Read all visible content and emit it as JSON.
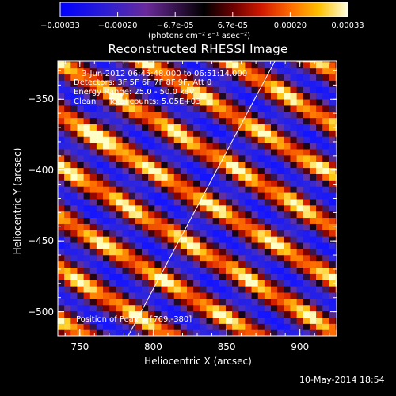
{
  "chart_data": {
    "type": "heatmap",
    "title": "Reconstructed RHESSI Image",
    "xlabel": "Heliocentric X (arcsec)",
    "ylabel": "Heliocentric Y (arcsec)",
    "xlim": [
      735,
      925
    ],
    "ylim": [
      -517,
      -323
    ],
    "xticks": [
      750,
      800,
      850,
      900
    ],
    "yticks": [
      -350,
      -400,
      -450,
      -500
    ],
    "colorbar": {
      "range": [
        -0.00033,
        0.00033
      ],
      "ticks": [
        "-0.00033",
        "-0.00020",
        "-6.7e-05",
        "6.7e-05",
        "0.00020",
        "0.00033"
      ],
      "unit_label": "(photons cm⁻² s⁻¹ asec⁻²)"
    },
    "annotations": {
      "time_range": "3-Jun-2012 06:45:48.000 to 06:51:14.000",
      "detectors": "Detectors: 3F 5F 6F 7F 8F 9F, Att 0",
      "energy_range": "Energy Range: 25.0 - 50.0 keV",
      "clean_counts": "Clean     Total counts: 5.05E+03",
      "peak_position": "Position of Peak = [769,-380]"
    },
    "peak": [
      769,
      -380
    ],
    "limb_line": {
      "x": [
        783,
        883
      ],
      "y": [
        -517,
        -323
      ]
    },
    "pattern": {
      "description": "diagonal fringe stripes (top-left to bottom-right) alternating bright yellow/red ridges and dark blue/purple troughs",
      "stripe_angle_deg": -32,
      "stripe_spacing_arcsec": 31
    },
    "grid": false,
    "legend": "none"
  },
  "footer": {
    "date": "10-May-2014 18:54"
  }
}
